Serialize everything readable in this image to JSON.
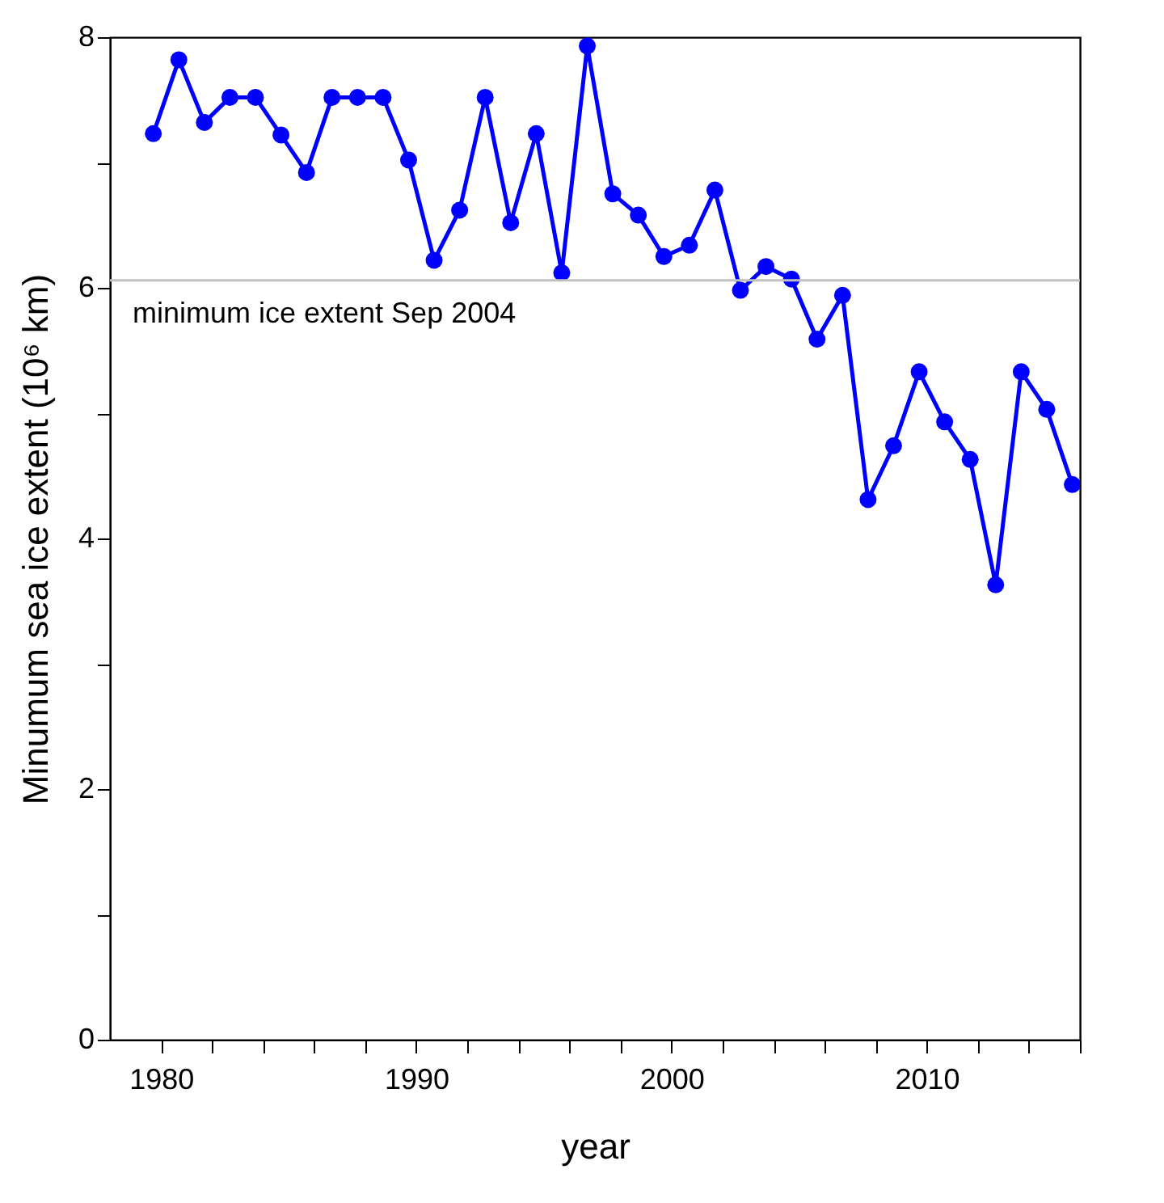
{
  "chart_data": {
    "type": "line",
    "xlabel": "year",
    "ylabel": "Minumum sea ice extent (10⁶ km)",
    "x": [
      1979.7,
      1980.7,
      1981.7,
      1982.7,
      1983.7,
      1984.7,
      1985.7,
      1986.7,
      1987.7,
      1988.7,
      1989.7,
      1990.7,
      1991.7,
      1992.7,
      1993.7,
      1994.7,
      1995.7,
      1996.7,
      1997.7,
      1998.7,
      1999.7,
      2000.7,
      2001.7,
      2002.7,
      2003.7,
      2004.7,
      2005.7,
      2006.7,
      2007.7,
      2008.7,
      2009.7,
      2010.7,
      2011.7,
      2012.7,
      2013.7,
      2014.7,
      2015.7
    ],
    "series": [
      {
        "color": "#0000ff",
        "values": [
          7.23,
          7.82,
          7.32,
          7.52,
          7.52,
          7.22,
          6.92,
          7.52,
          7.52,
          7.52,
          7.02,
          6.22,
          6.62,
          7.52,
          6.52,
          7.23,
          6.12,
          7.93,
          6.75,
          6.58,
          6.25,
          6.34,
          6.78,
          5.98,
          6.17,
          6.07,
          5.59,
          5.94,
          4.31,
          4.74,
          5.33,
          4.93,
          4.63,
          3.63,
          5.33,
          5.03,
          4.43
        ]
      }
    ],
    "marker": "circle",
    "line_style": "solid",
    "xlim": [
      1978,
      2016
    ],
    "ylim": [
      0,
      8
    ],
    "xticks": [
      1980,
      {
        "value": 1982,
        "label": null
      },
      {
        "value": 1984,
        "label": null
      },
      {
        "value": 1986,
        "label": null
      },
      {
        "value": 1988,
        "label": null
      },
      1990,
      {
        "value": 1992,
        "label": null
      },
      {
        "value": 1994,
        "label": null
      },
      {
        "value": 1996,
        "label": null
      },
      {
        "value": 1998,
        "label": null
      },
      2000,
      {
        "value": 2002,
        "label": null
      },
      {
        "value": 2004,
        "label": null
      },
      {
        "value": 2006,
        "label": null
      },
      {
        "value": 2008,
        "label": null
      },
      2010,
      {
        "value": 2012,
        "label": null
      },
      {
        "value": 2014,
        "label": null
      },
      {
        "value": 2016,
        "label": null
      }
    ],
    "yticks": [
      0,
      {
        "value": 1,
        "label": null
      },
      2,
      {
        "value": 3,
        "label": null
      },
      4,
      {
        "value": 5,
        "label": null
      },
      6,
      {
        "value": 7,
        "label": null
      },
      8
    ],
    "ref_lines": [
      {
        "axis": "y",
        "value": 6.06,
        "label": "minimum ice extent  Sep 2004",
        "color": "#c0c0c0"
      }
    ],
    "grid": false,
    "legend": false
  }
}
